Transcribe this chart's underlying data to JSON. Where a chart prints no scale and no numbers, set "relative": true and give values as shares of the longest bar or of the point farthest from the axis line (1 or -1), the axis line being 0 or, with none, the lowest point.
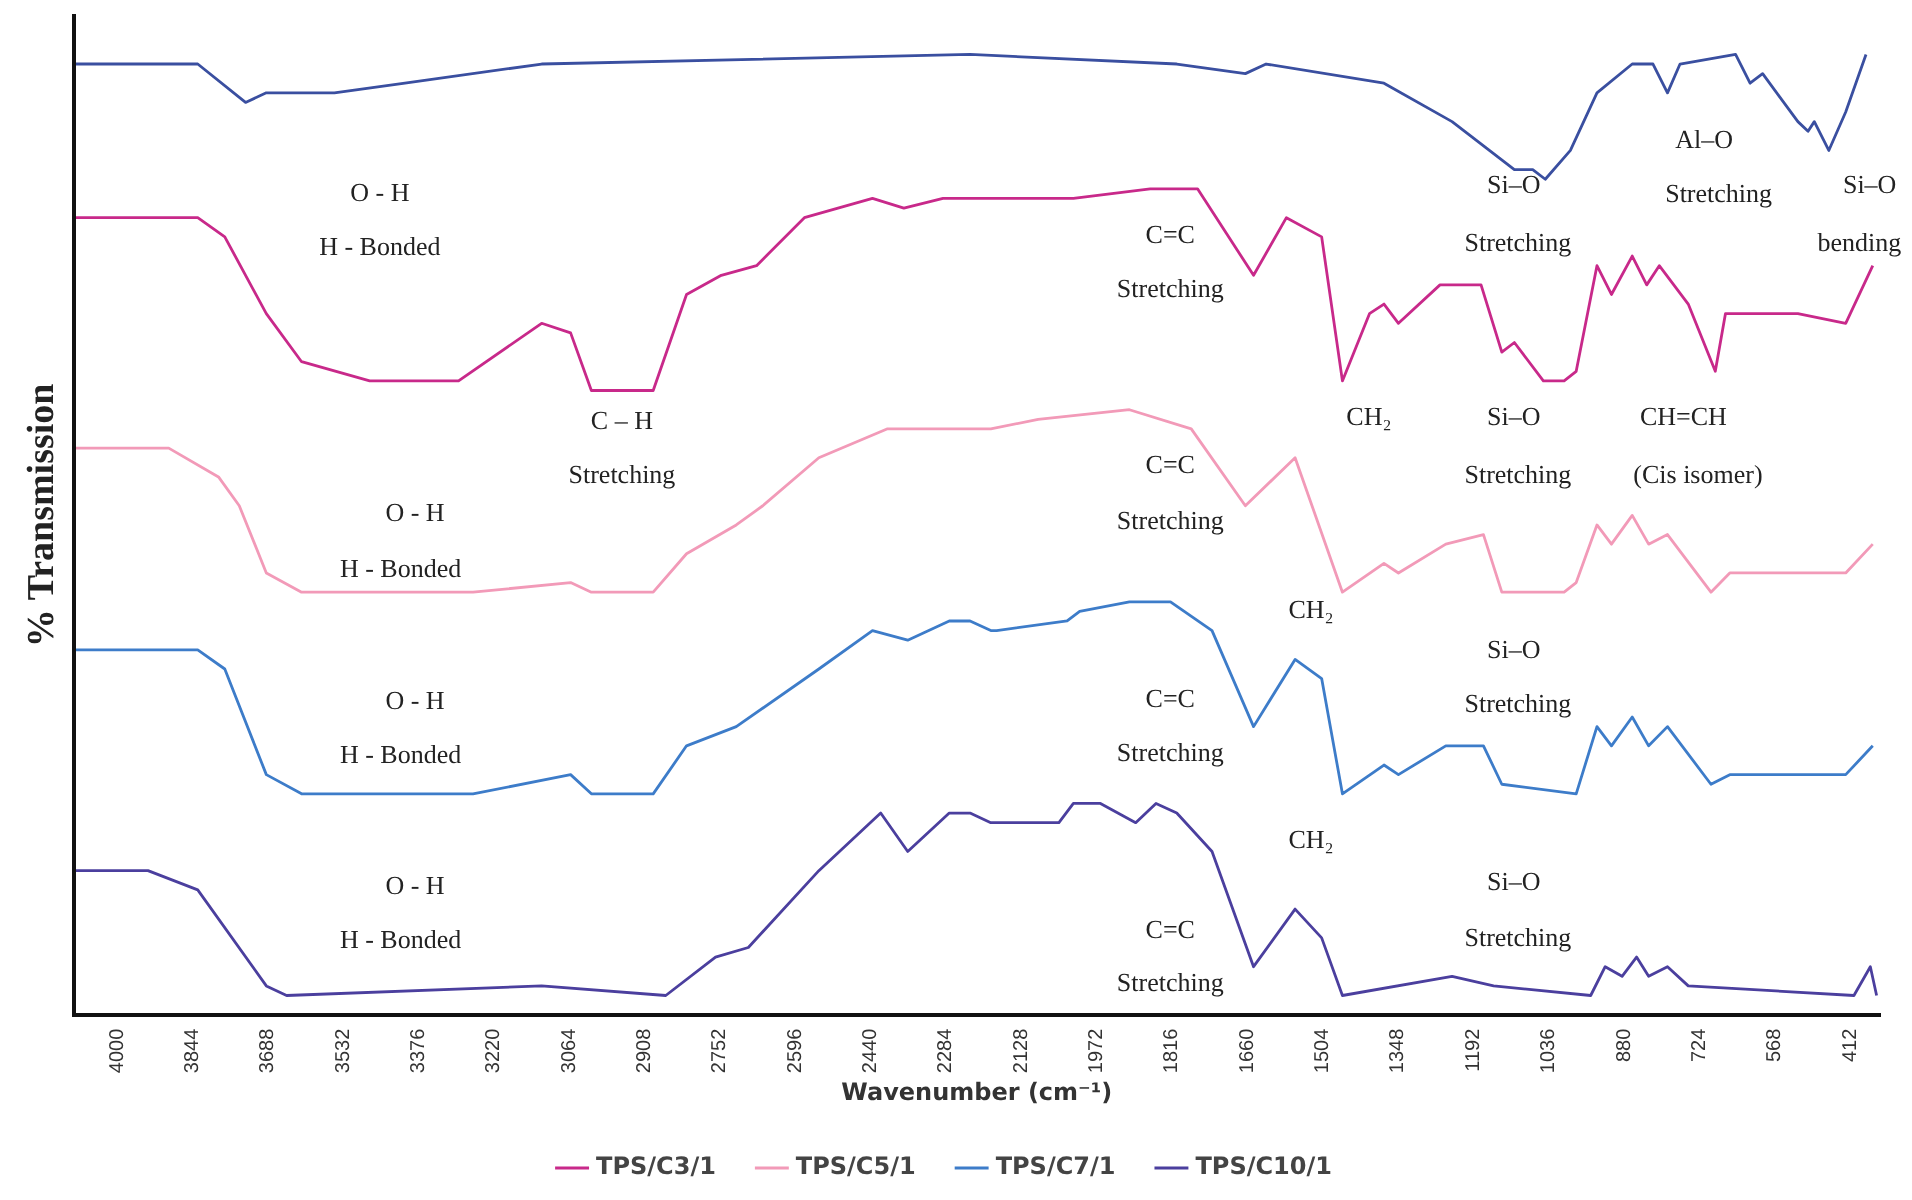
{
  "chart_data": {
    "type": "line",
    "relative": true,
    "xlabel": "Wavenumber (cm⁻¹)",
    "ylabel": "% Transmission",
    "legend": "bottom",
    "grid": false,
    "marker": "none",
    "line_style": "solid",
    "xlim": [
      4090,
      350
    ],
    "xticks": [
      4000,
      3844,
      3688,
      3532,
      3376,
      3220,
      3064,
      2908,
      2752,
      2596,
      2440,
      2284,
      2128,
      1972,
      1816,
      1660,
      1504,
      1348,
      1192,
      1036,
      880,
      724,
      568,
      412
    ],
    "series": [
      {
        "color": "#3a4fa0",
        "x": [
          4085,
          3833,
          3734,
          3691,
          3550,
          3404,
          3121,
          2234,
          1806,
          1664,
          1621,
          1377,
          1236,
          1107,
          1069,
          1043,
          991,
          936,
          863,
          820,
          790,
          764,
          649,
          619,
          593,
          520,
          499,
          486,
          456,
          421,
          379
        ],
        "values": [
          0.99,
          0.99,
          0.95,
          0.96,
          0.96,
          0.97,
          0.99,
          1.0,
          0.99,
          0.98,
          0.99,
          0.97,
          0.93,
          0.88,
          0.88,
          0.87,
          0.9,
          0.96,
          0.99,
          0.99,
          0.96,
          0.99,
          1.0,
          0.97,
          0.98,
          0.93,
          0.92,
          0.93,
          0.9,
          0.94,
          1.0
        ]
      },
      {
        "name": "TPS/C3/1",
        "color": "#c8298a",
        "x": [
          4085,
          3833,
          3777,
          3691,
          3618,
          3477,
          3293,
          3121,
          3061,
          3018,
          2890,
          2821,
          2749,
          2676,
          2577,
          2436,
          2371,
          2290,
          2191,
          2020,
          1861,
          1763,
          1647,
          1579,
          1506,
          1463,
          1407,
          1377,
          1347,
          1261,
          1176,
          1133,
          1107,
          1047,
          1004,
          979,
          936,
          906,
          863,
          833,
          807,
          747,
          691,
          670,
          520,
          421,
          365
        ],
        "values": [
          0.83,
          0.83,
          0.81,
          0.73,
          0.68,
          0.66,
          0.66,
          0.72,
          0.71,
          0.65,
          0.65,
          0.75,
          0.77,
          0.78,
          0.83,
          0.85,
          0.84,
          0.85,
          0.85,
          0.85,
          0.86,
          0.86,
          0.77,
          0.83,
          0.81,
          0.66,
          0.73,
          0.74,
          0.72,
          0.76,
          0.76,
          0.69,
          0.7,
          0.66,
          0.66,
          0.67,
          0.78,
          0.75,
          0.79,
          0.76,
          0.78,
          0.74,
          0.67,
          0.73,
          0.73,
          0.72,
          0.78
        ]
      },
      {
        "name": "TPS/C5/1",
        "color": "#f29ab8",
        "x": [
          4085,
          3893,
          3790,
          3747,
          3691,
          3618,
          3263,
          3061,
          3018,
          2890,
          2821,
          2718,
          2663,
          2547,
          2406,
          2191,
          2093,
          1904,
          1776,
          1664,
          1561,
          1463,
          1377,
          1347,
          1249,
          1171,
          1133,
          1004,
          979,
          936,
          906,
          863,
          829,
          790,
          700,
          661,
          421,
          365
        ],
        "values": [
          0.59,
          0.59,
          0.56,
          0.53,
          0.46,
          0.44,
          0.44,
          0.45,
          0.44,
          0.44,
          0.48,
          0.51,
          0.53,
          0.58,
          0.61,
          0.61,
          0.62,
          0.63,
          0.61,
          0.53,
          0.58,
          0.44,
          0.47,
          0.46,
          0.49,
          0.5,
          0.44,
          0.44,
          0.45,
          0.51,
          0.49,
          0.52,
          0.49,
          0.5,
          0.44,
          0.46,
          0.46,
          0.49
        ]
      },
      {
        "name": "TPS/C7/1",
        "color": "#3d7cc9",
        "x": [
          4085,
          3833,
          3777,
          3691,
          3618,
          3263,
          3061,
          3018,
          2890,
          2821,
          2718,
          2547,
          2436,
          2363,
          2277,
          2234,
          2191,
          2179,
          2033,
          2007,
          1904,
          1819,
          1733,
          1647,
          1561,
          1506,
          1463,
          1377,
          1347,
          1249,
          1171,
          1133,
          979,
          936,
          906,
          863,
          829,
          790,
          700,
          661,
          421,
          365
        ],
        "values": [
          0.38,
          0.38,
          0.36,
          0.25,
          0.23,
          0.23,
          0.25,
          0.23,
          0.23,
          0.28,
          0.3,
          0.36,
          0.4,
          0.39,
          0.41,
          0.41,
          0.4,
          0.4,
          0.41,
          0.42,
          0.43,
          0.43,
          0.4,
          0.3,
          0.37,
          0.35,
          0.23,
          0.26,
          0.25,
          0.28,
          0.28,
          0.24,
          0.23,
          0.3,
          0.28,
          0.31,
          0.28,
          0.3,
          0.24,
          0.25,
          0.25,
          0.28
        ]
      },
      {
        "name": "TPS/C10/1",
        "color": "#4b3f9e",
        "x": [
          4085,
          3936,
          3833,
          3691,
          3649,
          3121,
          2864,
          2761,
          2693,
          2547,
          2419,
          2363,
          2277,
          2234,
          2191,
          2179,
          2050,
          2020,
          1964,
          1891,
          1849,
          1806,
          1733,
          1647,
          1561,
          1506,
          1463,
          1236,
          1150,
          949,
          919,
          884,
          854,
          829,
          790,
          747,
          404,
          370,
          357
        ],
        "values": [
          0.15,
          0.15,
          0.13,
          0.03,
          0.02,
          0.03,
          0.02,
          0.06,
          0.07,
          0.15,
          0.21,
          0.17,
          0.21,
          0.21,
          0.2,
          0.2,
          0.2,
          0.22,
          0.22,
          0.2,
          0.22,
          0.21,
          0.17,
          0.05,
          0.11,
          0.08,
          0.02,
          0.04,
          0.03,
          0.02,
          0.05,
          0.04,
          0.06,
          0.04,
          0.05,
          0.03,
          0.02,
          0.05,
          0.02
        ]
      }
    ],
    "annotations": [
      "O - H",
      "H - Bonded",
      "C – H",
      "Stretching",
      "C=C",
      "Stretching",
      "Si–O",
      "Stretching",
      "Al–O",
      "Stretching",
      "Si–O",
      "bending",
      "CH₂",
      "Si–O",
      "Stretching",
      "CH=CH",
      "(Cis isomer)",
      "O - H",
      "H - Bonded",
      "C=C",
      "Stretching",
      "CH₂",
      "O - H",
      "H - Bonded",
      "Si–O",
      "C=C",
      "Stretching",
      "Stretching",
      "CH₂",
      "O - H",
      "H - Bonded",
      "Si–O",
      "C=C",
      "Stretching",
      "Stretching"
    ]
  }
}
